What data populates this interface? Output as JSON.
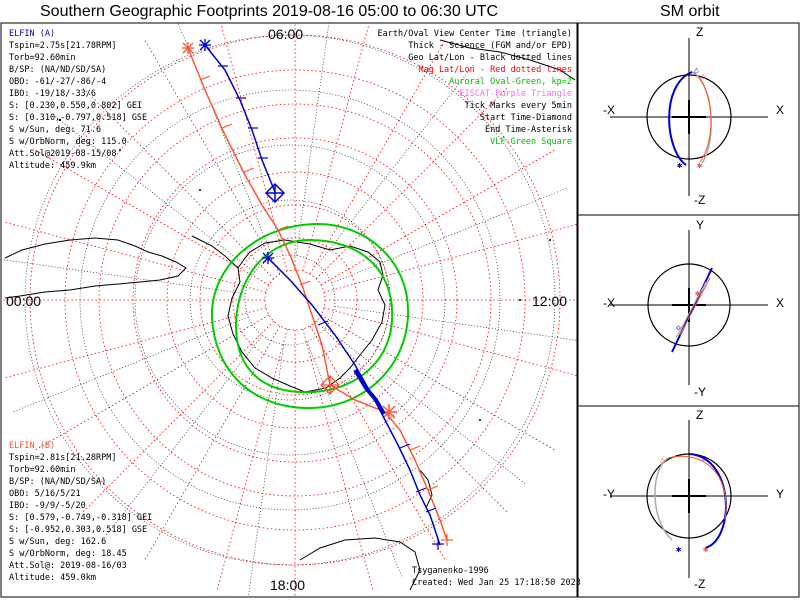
{
  "title": "Southern Geographic Footprints 2019-08-16 05:00 to 06:30 UTC",
  "orbit_title": "SM orbit",
  "clock_labels": {
    "top": "06:00",
    "left": "00:00",
    "right": "12:00",
    "bottom": "18:00"
  },
  "legend": [
    {
      "text": "Earth/Oval View Center Time (triangle)",
      "color": "#000000"
    },
    {
      "text": "Thick - Science (FGM and/or EPD)",
      "color": "#000000"
    },
    {
      "text": "Geo Lat/Lon - Black dotted lines",
      "color": "#000000"
    },
    {
      "text": "Mag Lat/Lon - Red dotted lines",
      "color": "#ff0000"
    },
    {
      "text": "Auroral Oval-Green, kp=2",
      "color": "#00c000"
    },
    {
      "text": "EISCAT-Purple Triangle",
      "color": "#ff66ff"
    },
    {
      "text": "Tick Marks every 5min",
      "color": "#000000"
    },
    {
      "text": "Start Time-Diamond",
      "color": "#000000"
    },
    {
      "text": "End Time-Asterisk",
      "color": "#000000"
    },
    {
      "text": "VLF-Green Square",
      "color": "#00c000"
    }
  ],
  "elfin_a": {
    "name": "ELFIN (A)",
    "lines": [
      "Tspin=2.75s[21.78RPM]",
      "Torb=92.60min",
      "B/SP: (NA/ND/SD/SA)",
      "OBO: -61/-27/-86/-4",
      "IBO: -19/18/-33/6",
      "S: [0.230,0.550,0.802] GEI",
      "S: [0.310,-0.797,0.518] GSE",
      "S w/Sun, deg: 71.6",
      "S w/OrbNorm, deg: 115.0",
      "Att.Sol@2019-08-15/08",
      "Altitude: 459.9km"
    ]
  },
  "elfin_b": {
    "name": "ELFIN (B)",
    "lines": [
      "Tspin=2.81s[21.28RPM]",
      "Torb=92.60min",
      "B/SP: (NA/ND/SD/SA)",
      "OBO: 5/16/5/21",
      "IBO: -9/9/-5/20",
      "S: [0.579,-0.749,-0.318] GEI",
      "S: [-0.952,0.303,0.518] GSE",
      "S w/Sun, deg: 162.6",
      "S w/OrbNorm, deg: 18.45",
      "Att.Sol@: 2019-08-16/03",
      "Altitude: 459.0km"
    ]
  },
  "footer": {
    "model": "Tsyganenko-1996",
    "created": "Created: Wed Jan 25 17:18:50 2023"
  },
  "orbit_panels": [
    {
      "top": "Z",
      "bottom": "-Z",
      "left": "-X",
      "right": "X"
    },
    {
      "top": "Y",
      "bottom": "-Y",
      "left": "-X",
      "right": "X"
    },
    {
      "top": "Z",
      "bottom": "-Z",
      "left": "-Y",
      "right": "Y"
    }
  ],
  "colors": {
    "elfin_a": "#0000cc",
    "elfin_b": "#ff5533",
    "oval": "#00cc00",
    "grid_mag": "#ff0000",
    "grid_geo": "#000000"
  }
}
